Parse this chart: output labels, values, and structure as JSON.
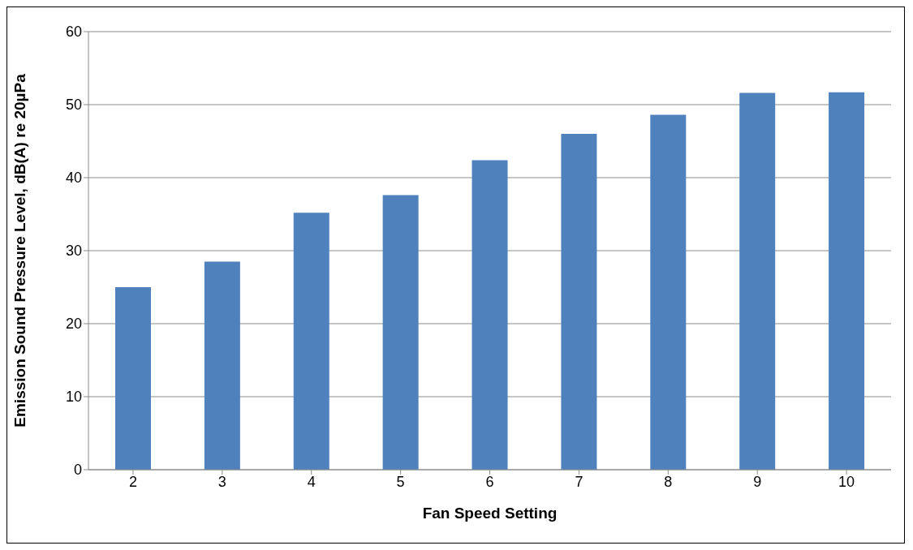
{
  "chart_data": {
    "type": "bar",
    "xlabel": "Fan Speed Setting",
    "ylabel": "Emission Sound Pressure Level, dB(A) re 20µPa",
    "categories": [
      "2",
      "3",
      "4",
      "5",
      "6",
      "7",
      "8",
      "9",
      "10"
    ],
    "values": [
      25.0,
      28.5,
      35.2,
      37.6,
      42.4,
      46.0,
      48.6,
      51.6,
      51.7
    ],
    "color": "#4f81bd",
    "ylim": [
      0,
      60
    ],
    "yticks": [
      0,
      10,
      20,
      30,
      40,
      50,
      60
    ],
    "grid": "y"
  }
}
